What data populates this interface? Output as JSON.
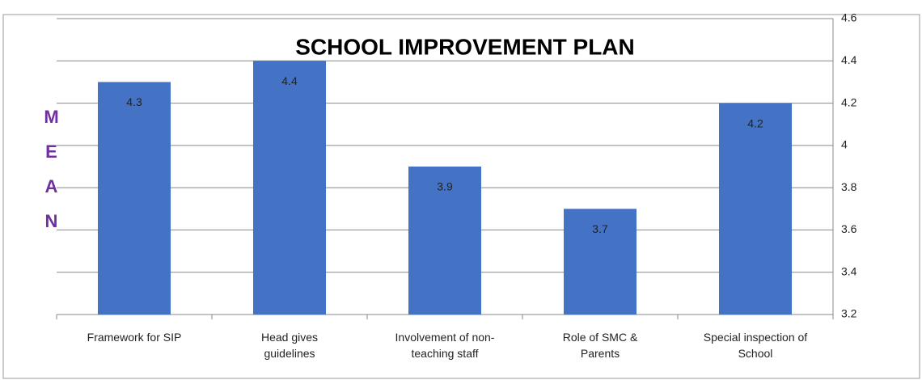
{
  "chart_data": {
    "type": "bar",
    "title": "SCHOOL IMPROVEMENT PLAN",
    "y_label": "MEAN",
    "categories": [
      "Framework for SIP",
      "Head gives\nguidelines",
      "Involvement of non-\nteaching staff",
      "Role of SMC &\nParents",
      "Special inspection of\nSchool"
    ],
    "values": [
      4.3,
      4.4,
      3.9,
      3.7,
      4.2
    ],
    "color": "#4472c4",
    "ylim": [
      3.2,
      4.6
    ],
    "yticks": [
      3.2,
      3.4,
      3.6,
      3.8,
      4,
      4.2,
      4.4,
      4.6
    ],
    "grid": true,
    "y_axis_side": "right"
  }
}
